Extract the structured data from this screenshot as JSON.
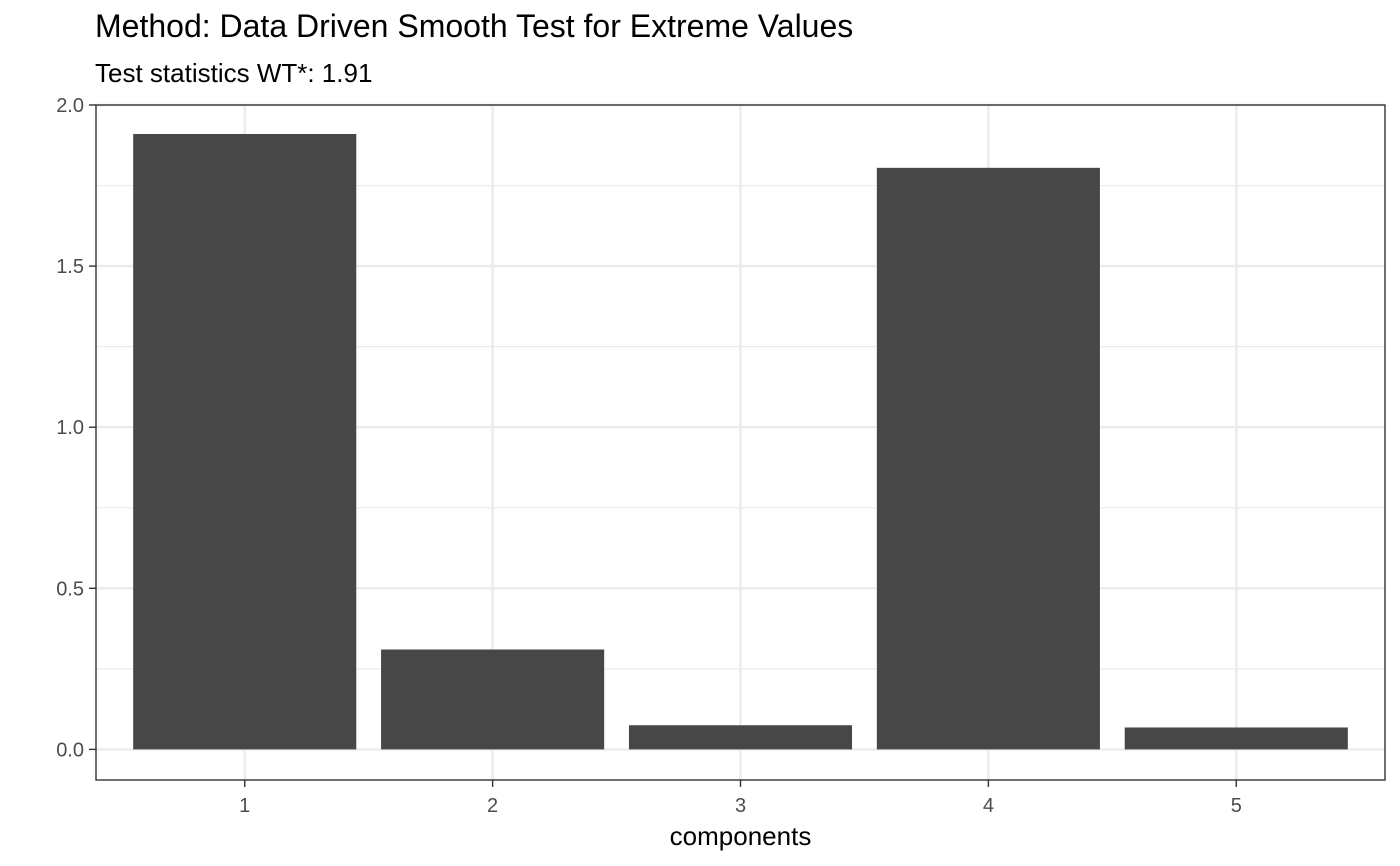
{
  "chart_data": {
    "type": "bar",
    "title": "Method: Data Driven Smooth Test for Extreme Values",
    "subtitle": "Test statistics WT*: 1.91",
    "xlabel": "components",
    "ylabel": "",
    "categories": [
      "1",
      "2",
      "3",
      "4",
      "5"
    ],
    "values": [
      1.91,
      0.31,
      0.075,
      1.805,
      0.068
    ],
    "ylim": [
      -0.095,
      2.0
    ],
    "yticks": [
      0.0,
      0.5,
      1.0,
      1.5,
      2.0
    ],
    "ytick_labels": [
      "0.0",
      "0.5",
      "1.0",
      "1.5",
      "2.0"
    ],
    "grid": true,
    "bar_color": "#474747",
    "grid_color": "#ebebeb",
    "panel_border_color": "#333333"
  }
}
